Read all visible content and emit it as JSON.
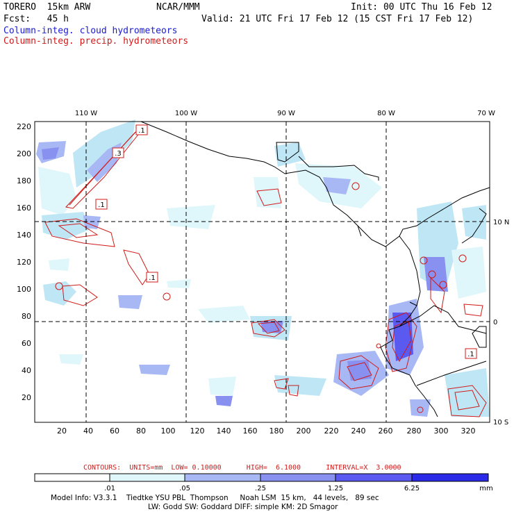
{
  "header": {
    "model": "TORERO  15km ARW",
    "org": "NCAR/MMM",
    "init": "Init: 00 UTC Thu 16 Feb 12",
    "fcst": "Fcst:   45 h",
    "valid": "Valid: 21 UTC Fri 17 Feb 12 (15 CST Fri 17 Feb 12)",
    "field_cloud": "Column-integ. cloud hydrometeors",
    "field_precip": "Column-integ. precip. hydrometeors"
  },
  "map": {
    "lon_labels": [
      "110 W",
      "100 W",
      "90 W",
      "80 W",
      "70 W"
    ],
    "lat_labels": [
      "10 N",
      "0",
      "10 S"
    ],
    "y_ticks": [
      "220",
      "200",
      "180",
      "160",
      "140",
      "120",
      "100",
      "80",
      "60",
      "40",
      "20"
    ],
    "x_ticks": [
      "20",
      "40",
      "60",
      "80",
      "100",
      "120",
      "140",
      "160",
      "180",
      "200",
      "220",
      "240",
      "260",
      "280",
      "300",
      "320"
    ],
    "contour_labels": [
      ".1",
      ".3",
      ".1",
      ".1",
      ".1"
    ]
  },
  "colors": {
    "precip_contour": "#d01a1a",
    "coast": "#000000",
    "shade_1": "#dff6fb",
    "shade_2": "#bfe6f5",
    "shade_3": "#a8b8f4",
    "shade_4": "#8890f0",
    "shade_5": "#5a5af0",
    "shade_6": "#2a2ae8"
  },
  "legend": {
    "contours": "CONTOURS:  UNITS=mm  LOW= 0.10000      HIGH=  6.1000      INTERVAL=X  3.0000",
    "labels": [
      ".01",
      ".05",
      ".25",
      "1.25",
      "6.25"
    ],
    "unit": "mm"
  },
  "footer": {
    "line1": "Model Info: V3.3.1    Tiedtke YSU PBL  Thompson     Noah LSM  15 km,   44 levels,   89 sec",
    "line2": "LW: Godd SW: Goddard DIFF: simple KM: 2D Smagor"
  }
}
